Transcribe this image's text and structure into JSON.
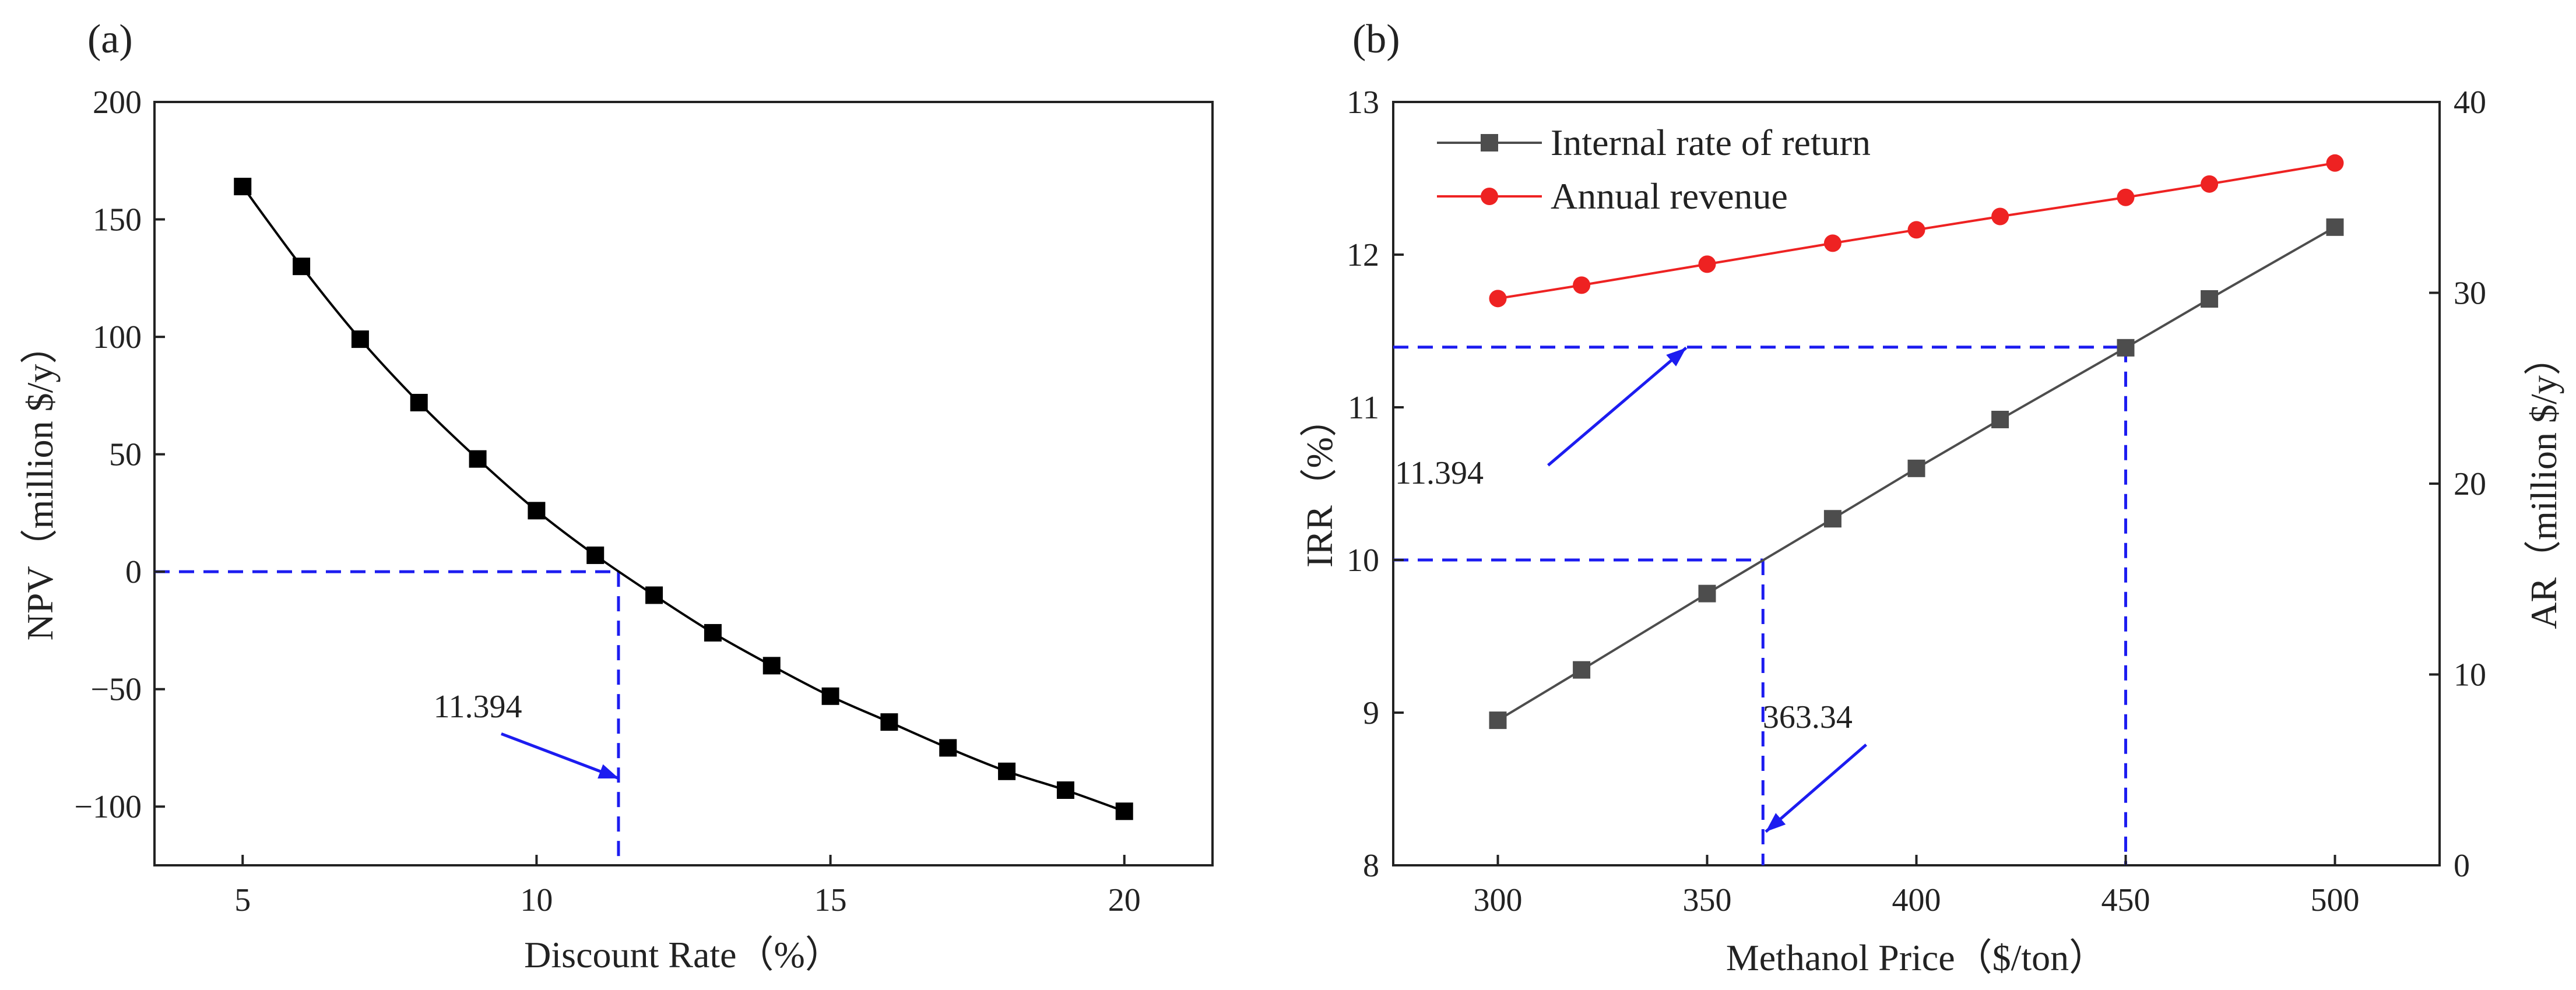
{
  "colors": {
    "npv": "#000000",
    "irr": "#4d4d4d",
    "ar": "#ee2222",
    "reference": "#1c1cf0",
    "axis": "#222222"
  },
  "chart_data": [
    {
      "panel": "(a)",
      "type": "line",
      "xlabel": "Discount Rate（%）",
      "ylabel": "NPV（million $/y）",
      "xlim": [
        3.5,
        21.5
      ],
      "ylim": [
        -125,
        200
      ],
      "x_ticks": [
        5,
        10,
        15,
        20
      ],
      "y_ticks": [
        -100,
        -50,
        0,
        50,
        100,
        150,
        200
      ],
      "y_tick_labels": [
        "−100",
        "−50",
        "0",
        "50",
        "100",
        "150",
        "200"
      ],
      "series": [
        {
          "name": "NPV",
          "marker": "square",
          "x": [
            5,
            6,
            7,
            8,
            9,
            10,
            11,
            12,
            13,
            14,
            15,
            16,
            17,
            18,
            19,
            20
          ],
          "values": [
            164,
            130,
            99,
            72,
            48,
            26,
            7,
            -10,
            -26,
            -40,
            -53,
            -64,
            -75,
            -85,
            -93,
            -102
          ]
        }
      ],
      "reference": {
        "x": 11.394,
        "y": 0
      },
      "annotations": [
        {
          "text": "11.394",
          "label_at": [
            9,
            -62
          ],
          "arrow_from": [
            9.4,
            -69
          ],
          "arrow_to": [
            11.4,
            -88
          ]
        }
      ]
    },
    {
      "panel": "(b)",
      "type": "line",
      "xlabel": "Methanol Price（$/ton）",
      "ylabel_left": "IRR（%）",
      "ylabel_right": "AR（million $/y）",
      "xlim": [
        275,
        525
      ],
      "ylim_left": [
        8,
        13
      ],
      "ylim_right": [
        0,
        40
      ],
      "x_ticks": [
        300,
        350,
        400,
        450,
        500
      ],
      "y_ticks_left": [
        8,
        9,
        10,
        11,
        12,
        13
      ],
      "y_ticks_right": [
        0,
        10,
        20,
        30,
        40
      ],
      "legend": {
        "position": "top-left",
        "entries": [
          "Internal rate of return",
          "Annual revenue"
        ]
      },
      "series": [
        {
          "name": "Internal rate of return",
          "axis": "left",
          "marker": "square",
          "x": [
            300,
            320,
            350,
            380,
            400,
            420,
            450,
            470,
            500
          ],
          "values": [
            8.95,
            9.28,
            9.78,
            10.27,
            10.6,
            10.92,
            11.39,
            11.71,
            12.18
          ]
        },
        {
          "name": "Annual revenue",
          "axis": "right",
          "marker": "circle",
          "x": [
            300,
            320,
            350,
            380,
            400,
            420,
            450,
            470,
            500
          ],
          "values": [
            29.7,
            30.4,
            31.5,
            32.6,
            33.3,
            34.0,
            35.0,
            35.7,
            36.8
          ]
        }
      ],
      "references": [
        {
          "x": 363.34,
          "y": 10
        },
        {
          "x": 450,
          "y": 11.394
        }
      ],
      "annotations": [
        {
          "text": "11.394",
          "label_at": [
            286,
            10.5
          ],
          "arrow_from": [
            312,
            10.62
          ],
          "arrow_to": [
            345,
            11.39
          ]
        },
        {
          "text": "363.34",
          "label_at": [
            374,
            8.9
          ],
          "arrow_from": [
            388,
            8.79
          ],
          "arrow_to": [
            364,
            8.22
          ]
        },
        {
          "text": "363.34",
          "label_at": null,
          "arrow_from": null,
          "arrow_to": null,
          "hidden": true
        }
      ]
    }
  ]
}
